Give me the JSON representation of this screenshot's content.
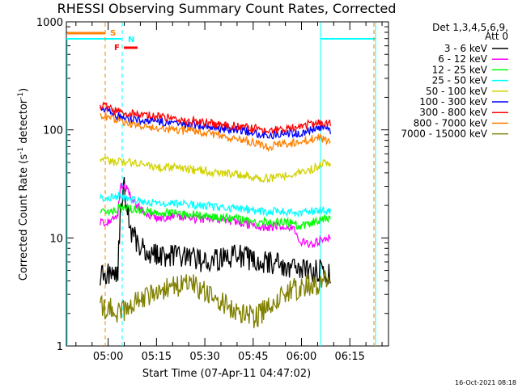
{
  "chart_data": {
    "type": "line",
    "title": "RHESSI Observing Summary Count Rates, Corrected",
    "xlabel": "Start Time (07-Apr-11 04:47:02)",
    "ylabel_main": "Corrected Count Rate (s",
    "ylabel_sup1": "-1",
    "ylabel_mid": " detector",
    "ylabel_sup2": "-1",
    "ylabel_end": ")",
    "yscale": "log",
    "ylim": [
      1,
      1000
    ],
    "xlim": [
      "04:47:02",
      "06:27:00"
    ],
    "y_ticks": [
      "1",
      "10",
      "100",
      "1000"
    ],
    "x_ticks": [
      "05:00",
      "05:15",
      "05:30",
      "05:45",
      "06:00",
      "06:15"
    ],
    "x_tick_minutes": [
      300,
      315,
      330,
      345,
      360,
      375
    ],
    "x_start_minutes": 287.03,
    "x_end_minutes": 387,
    "legend_header": [
      "Det 1,3,4,5,6,9,",
      "Att 0"
    ],
    "series": [
      {
        "name": "3 - 6 keV",
        "color": "#000000",
        "points": [
          [
            297.5,
            4.5
          ],
          [
            300,
            4.6
          ],
          [
            303,
            5
          ],
          [
            304,
            22
          ],
          [
            305,
            30
          ],
          [
            306,
            18
          ],
          [
            307,
            12
          ],
          [
            309,
            9
          ],
          [
            312,
            7.5
          ],
          [
            315,
            7
          ],
          [
            320,
            6.8
          ],
          [
            325,
            6.5
          ],
          [
            330,
            6
          ],
          [
            335,
            6.4
          ],
          [
            338,
            6.8
          ],
          [
            340,
            7
          ],
          [
            345,
            6.2
          ],
          [
            350,
            6
          ],
          [
            355,
            5.5
          ],
          [
            360,
            5
          ],
          [
            364,
            5
          ],
          [
            366,
            5
          ],
          [
            369,
            4.5
          ]
        ]
      },
      {
        "name": "6 - 12 keV",
        "color": "#ff00ff",
        "points": [
          [
            297.5,
            14
          ],
          [
            300,
            14
          ],
          [
            303,
            17
          ],
          [
            304,
            31
          ],
          [
            306,
            28
          ],
          [
            308,
            21
          ],
          [
            312,
            17
          ],
          [
            315,
            15
          ],
          [
            320,
            16
          ],
          [
            325,
            15
          ],
          [
            330,
            15
          ],
          [
            335,
            15
          ],
          [
            340,
            14
          ],
          [
            345,
            13
          ],
          [
            350,
            12.5
          ],
          [
            355,
            13
          ],
          [
            358,
            12
          ],
          [
            359,
            9.5
          ],
          [
            361,
            9
          ],
          [
            363,
            8.8
          ],
          [
            366,
            9.5
          ],
          [
            368,
            10
          ],
          [
            369,
            10
          ]
        ]
      },
      {
        "name": "12 - 25 keV",
        "color": "#00ff00",
        "points": [
          [
            297.5,
            18
          ],
          [
            300,
            17
          ],
          [
            303,
            19
          ],
          [
            306,
            19
          ],
          [
            310,
            18
          ],
          [
            315,
            17
          ],
          [
            320,
            17
          ],
          [
            325,
            16.5
          ],
          [
            330,
            16
          ],
          [
            335,
            15.5
          ],
          [
            340,
            15
          ],
          [
            345,
            14
          ],
          [
            350,
            14
          ],
          [
            355,
            14
          ],
          [
            360,
            13
          ],
          [
            365,
            14.5
          ],
          [
            369,
            15
          ]
        ]
      },
      {
        "name": "25 - 50 keV",
        "color": "#00ffff",
        "points": [
          [
            297.5,
            24
          ],
          [
            300,
            23
          ],
          [
            303,
            24
          ],
          [
            306,
            23
          ],
          [
            310,
            22
          ],
          [
            315,
            21
          ],
          [
            320,
            21
          ],
          [
            325,
            20
          ],
          [
            330,
            20
          ],
          [
            335,
            19
          ],
          [
            340,
            19
          ],
          [
            345,
            18
          ],
          [
            350,
            17.5
          ],
          [
            355,
            17.5
          ],
          [
            360,
            17
          ],
          [
            365,
            18
          ],
          [
            369,
            18
          ]
        ]
      },
      {
        "name": "50 - 100 keV",
        "color": "#d2d200",
        "points": [
          [
            297.5,
            55
          ],
          [
            300,
            52
          ],
          [
            303,
            50
          ],
          [
            306,
            51
          ],
          [
            310,
            48
          ],
          [
            315,
            45
          ],
          [
            320,
            45
          ],
          [
            325,
            43
          ],
          [
            330,
            42
          ],
          [
            335,
            40
          ],
          [
            340,
            39
          ],
          [
            345,
            37
          ],
          [
            350,
            35
          ],
          [
            355,
            38
          ],
          [
            360,
            40
          ],
          [
            365,
            45
          ],
          [
            367,
            52
          ],
          [
            369,
            46
          ]
        ]
      },
      {
        "name": "100 - 300 keV",
        "color": "#0000ff",
        "points": [
          [
            297.5,
            160
          ],
          [
            300,
            150
          ],
          [
            303,
            135
          ],
          [
            306,
            128
          ],
          [
            310,
            125
          ],
          [
            315,
            120
          ],
          [
            320,
            115
          ],
          [
            325,
            112
          ],
          [
            330,
            108
          ],
          [
            335,
            103
          ],
          [
            340,
            100
          ],
          [
            345,
            95
          ],
          [
            350,
            88
          ],
          [
            355,
            92
          ],
          [
            360,
            95
          ],
          [
            365,
            105
          ],
          [
            369,
            100
          ]
        ]
      },
      {
        "name": "300 - 800 keV",
        "color": "#ff0000",
        "points": [
          [
            297.5,
            170
          ],
          [
            300,
            160
          ],
          [
            303,
            148
          ],
          [
            306,
            142
          ],
          [
            310,
            138
          ],
          [
            315,
            133
          ],
          [
            320,
            128
          ],
          [
            325,
            122
          ],
          [
            330,
            117
          ],
          [
            335,
            112
          ],
          [
            340,
            108
          ],
          [
            345,
            103
          ],
          [
            350,
            100
          ],
          [
            355,
            102
          ],
          [
            360,
            108
          ],
          [
            365,
            118
          ],
          [
            369,
            115
          ]
        ]
      },
      {
        "name": "800 - 7000 keV",
        "color": "#ff8000",
        "points": [
          [
            297.5,
            140
          ],
          [
            300,
            130
          ],
          [
            303,
            120
          ],
          [
            306,
            115
          ],
          [
            310,
            110
          ],
          [
            315,
            105
          ],
          [
            320,
            100
          ],
          [
            325,
            98
          ],
          [
            330,
            95
          ],
          [
            335,
            88
          ],
          [
            340,
            82
          ],
          [
            345,
            77
          ],
          [
            350,
            70
          ],
          [
            355,
            74
          ],
          [
            360,
            78
          ],
          [
            365,
            85
          ],
          [
            369,
            80
          ]
        ]
      },
      {
        "name": "7000 - 15000 keV",
        "color": "#808000",
        "points": [
          [
            297.5,
            2.3
          ],
          [
            300,
            2.2
          ],
          [
            304,
            2
          ],
          [
            306,
            2.3
          ],
          [
            310,
            2.6
          ],
          [
            315,
            3.2
          ],
          [
            320,
            3.6
          ],
          [
            325,
            3.8
          ],
          [
            330,
            3.2
          ],
          [
            335,
            2.6
          ],
          [
            340,
            2
          ],
          [
            345,
            1.8
          ],
          [
            350,
            2.3
          ],
          [
            355,
            3
          ],
          [
            360,
            3.6
          ],
          [
            365,
            3.8
          ],
          [
            369,
            4
          ]
        ]
      }
    ],
    "indicator_flags": [
      {
        "name": "S",
        "color": "#ff8000"
      },
      {
        "name": "N",
        "color": "#00ffff"
      },
      {
        "name": "F",
        "color": "#ff0000"
      }
    ],
    "grid": false,
    "legend_position": "right"
  },
  "footer": {
    "timestamp": "16-Oct-2021 08:18"
  }
}
